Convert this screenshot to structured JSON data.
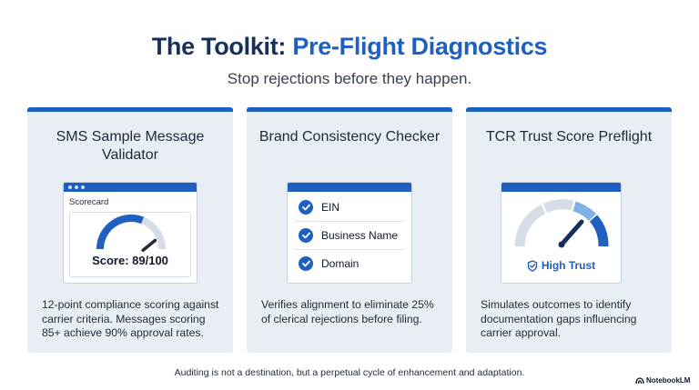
{
  "header": {
    "title_prefix": "The Toolkit: ",
    "title_accent": "Pre-Flight Diagnostics",
    "subtitle": "Stop rejections before they happen."
  },
  "colors": {
    "accent": "#1e5fbf",
    "title": "#17305a",
    "card_bg": "#e9eef5",
    "gauge_track": "#d6dde6",
    "gauge_light": "#7fb0e6"
  },
  "cards": [
    {
      "title": "SMS Sample Message Validator",
      "widget": {
        "label": "Scorecard",
        "score_text": "Score: 89/100",
        "score_value": 89,
        "score_max": 100
      },
      "description": "12-point compliance scoring against carrier criteria. Messages scoring 85+ achieve 90% approval rates."
    },
    {
      "title": "Brand Consistency Checker",
      "widget": {
        "checks": [
          "EIN",
          "Business Name",
          "Domain"
        ]
      },
      "description": "Verifies alignment to eliminate 25% of clerical rejections before filing."
    },
    {
      "title": "TCR Trust Score Preflight",
      "widget": {
        "status_text": "High Trust",
        "status_icon": "shield-check-icon"
      },
      "description": "Simulates outcomes to identify documentation gaps influencing carrier approval."
    }
  ],
  "footer": {
    "text": "Auditing is not a destination, but a perpetual cycle of enhancement and adaptation.",
    "brand": "NotebookLM"
  }
}
